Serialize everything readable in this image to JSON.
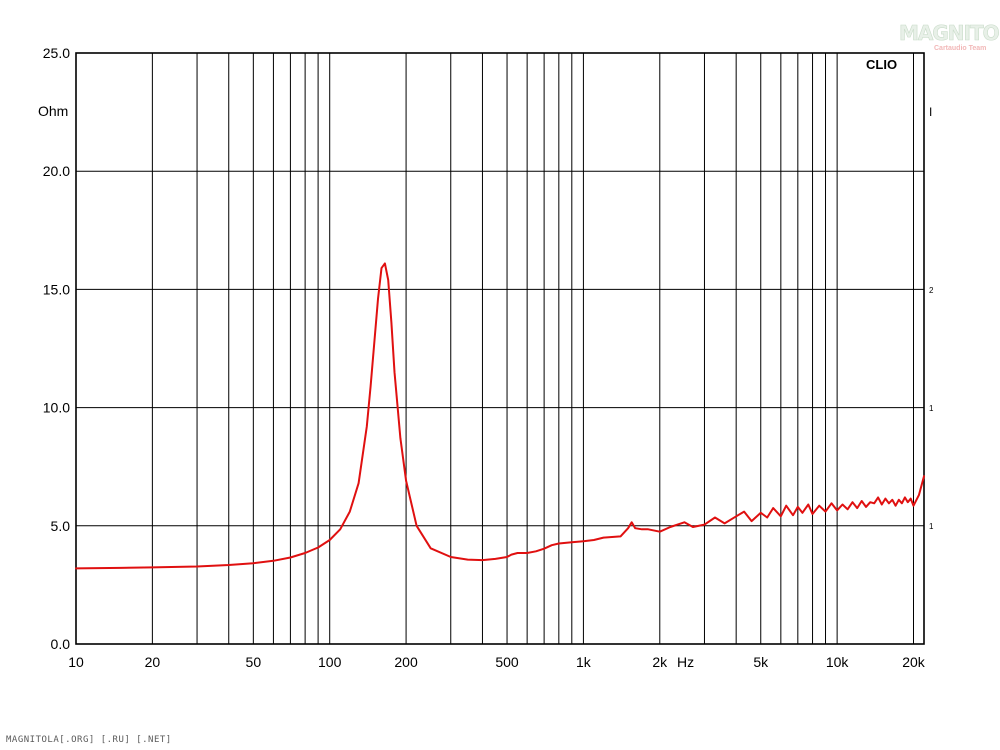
{
  "chart_data": {
    "type": "line",
    "title": "",
    "brand_label": "CLIO",
    "ylabel": "Ohm",
    "xlabel": "Hz",
    "x_scale": "log",
    "xlim": [
      10,
      22000
    ],
    "ylim": [
      0,
      25
    ],
    "grid": true,
    "y_ticks": [
      {
        "value": 0,
        "label": "0.0"
      },
      {
        "value": 5,
        "label": "5.0"
      },
      {
        "value": 10,
        "label": "10.0"
      },
      {
        "value": 15,
        "label": "15.0"
      },
      {
        "value": 20,
        "label": "20.0"
      },
      {
        "value": 25,
        "label": "25.0"
      }
    ],
    "x_ticks": [
      {
        "value": 10,
        "label": "10"
      },
      {
        "value": 20,
        "label": "20"
      },
      {
        "value": 50,
        "label": "50"
      },
      {
        "value": 100,
        "label": "100"
      },
      {
        "value": 200,
        "label": "200"
      },
      {
        "value": 500,
        "label": "500"
      },
      {
        "value": 1000,
        "label": "1k"
      },
      {
        "value": 2000,
        "label": "2k"
      },
      {
        "value": 5000,
        "label": "5k"
      },
      {
        "value": 10000,
        "label": "10k"
      },
      {
        "value": 20000,
        "label": "20k"
      }
    ],
    "series": [
      {
        "color": "#e01010",
        "x": [
          10,
          15,
          20,
          30,
          40,
          50,
          60,
          70,
          80,
          90,
          100,
          110,
          120,
          130,
          140,
          145,
          150,
          155,
          160,
          165,
          170,
          175,
          180,
          190,
          200,
          220,
          250,
          300,
          350,
          400,
          450,
          500,
          520,
          550,
          600,
          650,
          700,
          750,
          800,
          900,
          1000,
          1100,
          1200,
          1400,
          1500,
          1550,
          1600,
          1700,
          1800,
          2000,
          2200,
          2500,
          2700,
          3000,
          3300,
          3600,
          4000,
          4300,
          4600,
          5000,
          5300,
          5600,
          6000,
          6300,
          6700,
          7000,
          7300,
          7700,
          8000,
          8500,
          9000,
          9500,
          10000,
          10500,
          11000,
          11500,
          12000,
          12500,
          13000,
          13500,
          14000,
          14500,
          15000,
          15500,
          16000,
          16500,
          17000,
          17500,
          18000,
          18500,
          19000,
          19500,
          20000,
          21000,
          22000
        ],
        "values": [
          3.2,
          3.22,
          3.24,
          3.28,
          3.34,
          3.42,
          3.52,
          3.66,
          3.85,
          4.08,
          4.4,
          4.85,
          5.6,
          6.8,
          9.2,
          10.9,
          12.8,
          14.6,
          15.9,
          16.1,
          15.4,
          13.6,
          11.5,
          8.7,
          6.9,
          5.0,
          4.05,
          3.68,
          3.57,
          3.55,
          3.6,
          3.68,
          3.78,
          3.85,
          3.85,
          3.92,
          4.03,
          4.18,
          4.25,
          4.3,
          4.35,
          4.4,
          4.5,
          4.55,
          4.9,
          5.15,
          4.9,
          4.85,
          4.85,
          4.75,
          4.95,
          5.15,
          4.95,
          5.05,
          5.35,
          5.1,
          5.4,
          5.6,
          5.2,
          5.55,
          5.35,
          5.75,
          5.4,
          5.85,
          5.45,
          5.8,
          5.55,
          5.9,
          5.5,
          5.85,
          5.6,
          5.95,
          5.65,
          5.9,
          5.7,
          6.0,
          5.75,
          6.05,
          5.8,
          6.0,
          5.95,
          6.2,
          5.9,
          6.15,
          5.95,
          6.1,
          5.85,
          6.1,
          5.95,
          6.2,
          6.0,
          6.15,
          5.85,
          6.3,
          7.1
        ]
      }
    ]
  },
  "right_axis_marks": [
    "I",
    "2",
    "1",
    "1"
  ],
  "logo": {
    "main": "MAGNITOLA",
    "sub": "Cartaudio Team"
  },
  "footer": "MAGNITOLA[.ORG] [.RU] [.NET]"
}
